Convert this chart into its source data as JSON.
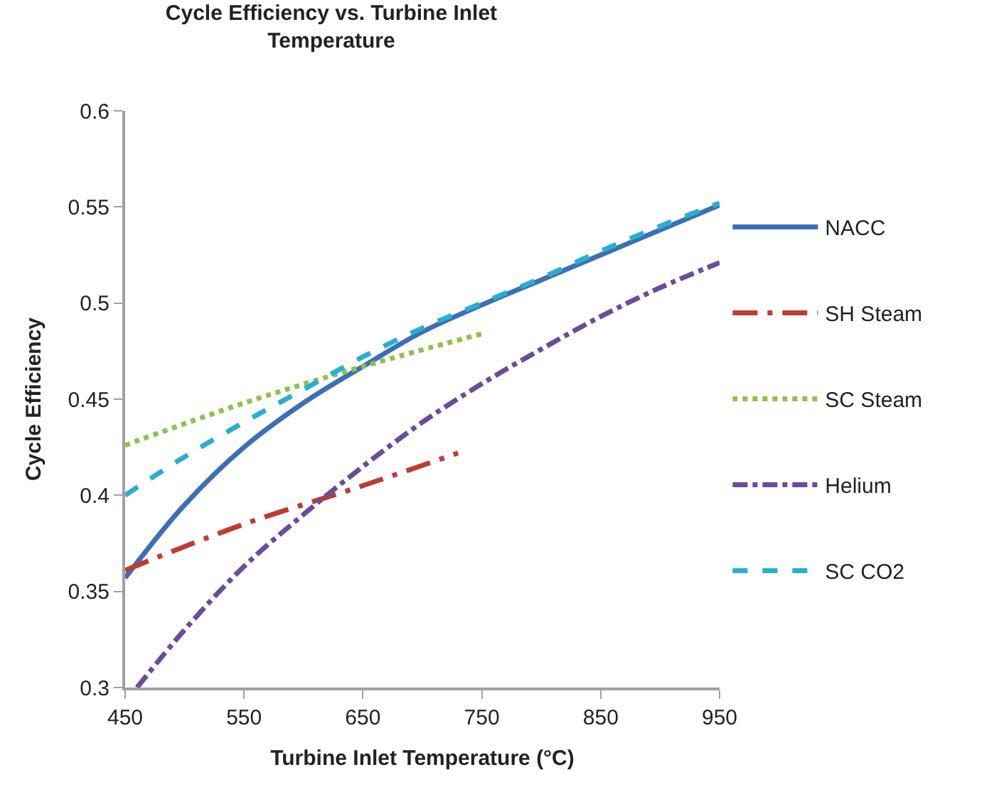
{
  "chart_data": {
    "type": "line",
    "title": "Cycle Efficiency vs. Turbine Inlet\nTemperature",
    "xlabel": "Turbine Inlet Temperature (°C)",
    "ylabel": "Cycle Efficiency",
    "xlim": [
      450,
      950
    ],
    "xticks": [
      450,
      550,
      650,
      750,
      850,
      950
    ],
    "ylim": [
      0.3,
      0.6
    ],
    "yticks": [
      0.3,
      0.35,
      0.4,
      0.45,
      0.5,
      0.55,
      0.6
    ],
    "legend": "right",
    "marker": "none",
    "series": [
      {
        "name": "NACC",
        "color": "#3c6fb6",
        "line_style": "solid",
        "x": [
          450,
          500,
          550,
          600,
          650,
          700,
          750,
          800,
          850,
          900,
          950
        ],
        "values": [
          0.357,
          0.395,
          0.425,
          0.448,
          0.467,
          0.485,
          0.499,
          0.512,
          0.525,
          0.538,
          0.551
        ]
      },
      {
        "name": "SH Steam",
        "color": "#be3b35",
        "line_style": "longdashdot",
        "x": [
          450,
          550,
          650,
          730
        ],
        "values": [
          0.361,
          0.385,
          0.405,
          0.422
        ]
      },
      {
        "name": "SC Steam",
        "color": "#92c050",
        "line_style": "dotted",
        "x": [
          450,
          550,
          650,
          750
        ],
        "values": [
          0.426,
          0.448,
          0.467,
          0.484
        ]
      },
      {
        "name": "Helium",
        "color": "#6b4c9a",
        "line_style": "dashdot",
        "x": [
          460,
          500,
          550,
          600,
          650,
          700,
          750,
          800,
          850,
          900,
          950
        ],
        "values": [
          0.3,
          0.33,
          0.363,
          0.39,
          0.415,
          0.438,
          0.458,
          0.476,
          0.493,
          0.508,
          0.521
        ]
      },
      {
        "name": "SC CO2",
        "color": "#2aaed0",
        "line_style": "dashed",
        "x": [
          450,
          500,
          550,
          600,
          650,
          700,
          750,
          800,
          850,
          900,
          950
        ],
        "values": [
          0.4,
          0.42,
          0.438,
          0.455,
          0.472,
          0.487,
          0.5,
          0.513,
          0.527,
          0.54,
          0.552
        ]
      }
    ]
  }
}
